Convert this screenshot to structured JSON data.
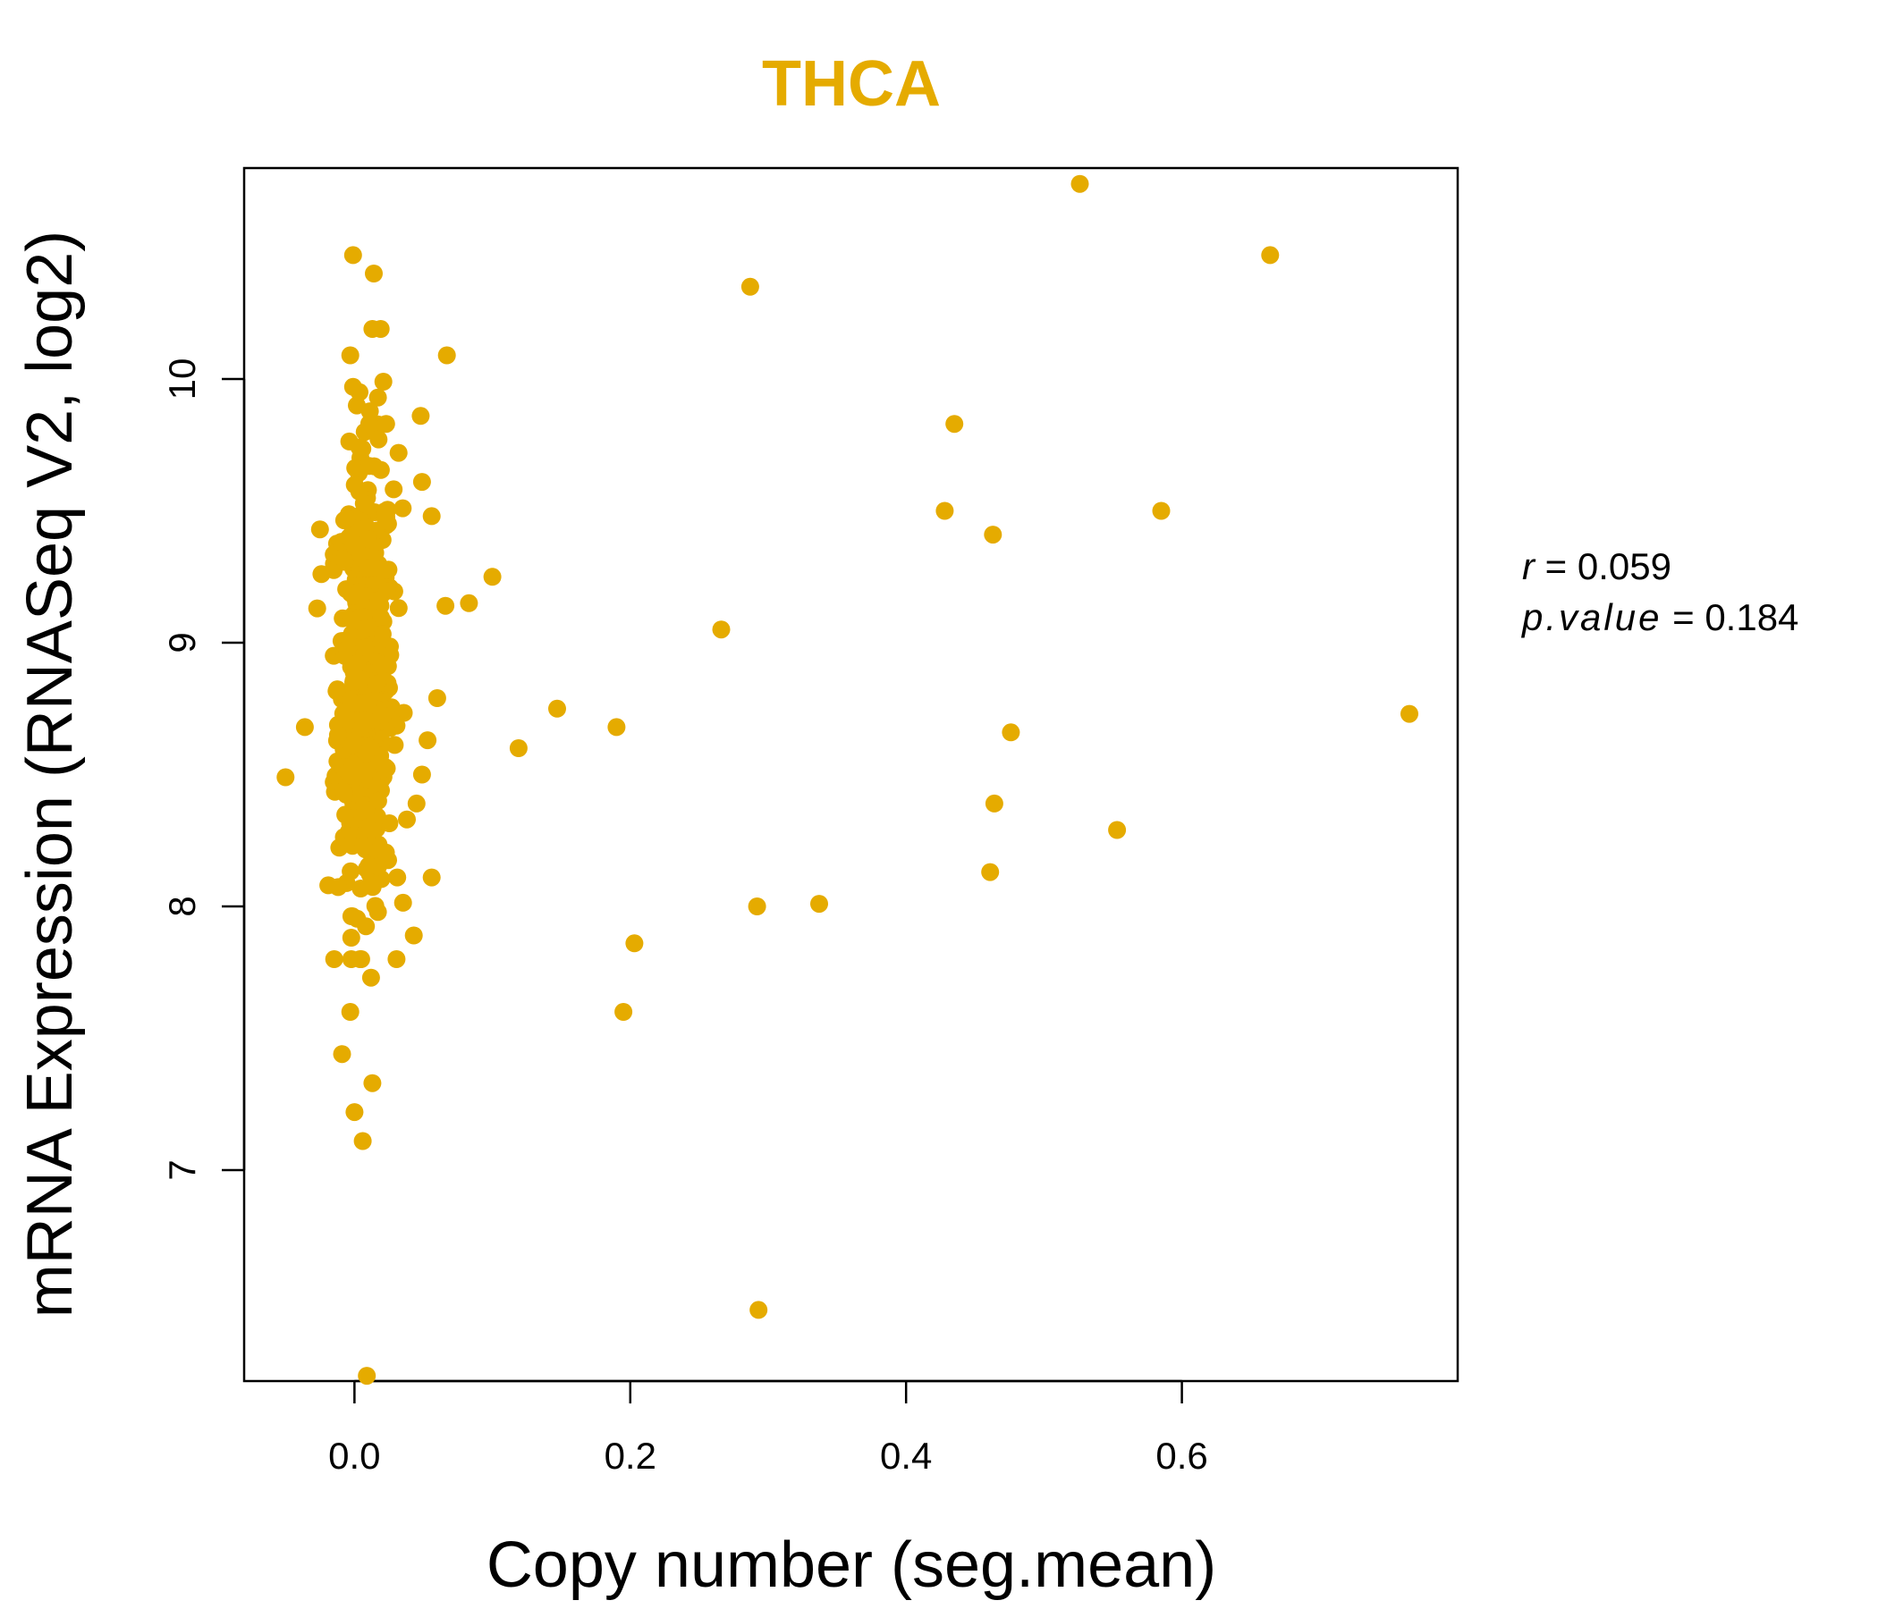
{
  "chart_data": {
    "type": "scatter",
    "title": "THCA",
    "xlabel": "Copy number (seg.mean)",
    "ylabel": "mRNA Expression (RNASeq V2, log2)",
    "xlim": [
      -0.08,
      0.8
    ],
    "ylim": [
      6.2,
      10.8
    ],
    "xticks": [
      {
        "value": 0.0,
        "label": "0.0"
      },
      {
        "value": 0.2,
        "label": "0.2"
      },
      {
        "value": 0.4,
        "label": "0.4"
      },
      {
        "value": 0.6,
        "label": "0.6"
      }
    ],
    "yticks": [
      {
        "value": 7,
        "label": "7"
      },
      {
        "value": 8,
        "label": "8"
      },
      {
        "value": 9,
        "label": "9"
      },
      {
        "value": 10,
        "label": "10"
      }
    ],
    "point_color": "#E5AB00",
    "stats": {
      "r_label": "r",
      "r_value": "0.059",
      "p_label": "p.value",
      "p_value": "0.184"
    },
    "outliers": [
      {
        "x": 0.526,
        "y": 10.74
      },
      {
        "x": 0.664,
        "y": 10.47
      },
      {
        "x": 0.287,
        "y": 10.35
      },
      {
        "x": 0.435,
        "y": 9.83
      },
      {
        "x": 0.428,
        "y": 9.5
      },
      {
        "x": 0.585,
        "y": 9.5
      },
      {
        "x": 0.463,
        "y": 9.41
      },
      {
        "x": 0.266,
        "y": 9.05
      },
      {
        "x": 0.765,
        "y": 8.73
      },
      {
        "x": 0.147,
        "y": 8.75
      },
      {
        "x": 0.19,
        "y": 8.68
      },
      {
        "x": 0.476,
        "y": 8.66
      },
      {
        "x": 0.119,
        "y": 8.6
      },
      {
        "x": 0.464,
        "y": 8.39
      },
      {
        "x": 0.553,
        "y": 8.29
      },
      {
        "x": 0.461,
        "y": 8.13
      },
      {
        "x": 0.292,
        "y": 8.0
      },
      {
        "x": 0.337,
        "y": 8.01
      },
      {
        "x": 0.203,
        "y": 7.86
      },
      {
        "x": 0.195,
        "y": 7.6
      },
      {
        "x": 0.293,
        "y": 6.47
      },
      {
        "x": 0.1,
        "y": 9.25
      },
      {
        "x": 0.083,
        "y": 9.15
      },
      {
        "x": 0.066,
        "y": 9.14
      },
      {
        "x": 0.06,
        "y": 8.79
      },
      {
        "x": 0.067,
        "y": 10.09
      },
      {
        "x": 0.048,
        "y": 9.86
      },
      {
        "x": 0.049,
        "y": 9.61
      },
      {
        "x": 0.056,
        "y": 9.48
      },
      {
        "x": 0.053,
        "y": 8.63
      },
      {
        "x": 0.049,
        "y": 8.5
      },
      {
        "x": 0.045,
        "y": 8.39
      },
      {
        "x": 0.038,
        "y": 8.33
      },
      {
        "x": 0.056,
        "y": 8.11
      },
      {
        "x": 0.043,
        "y": 7.89
      },
      {
        "x": -0.05,
        "y": 8.49
      },
      {
        "x": -0.036,
        "y": 8.68
      },
      {
        "x": -0.025,
        "y": 9.43
      },
      {
        "x": -0.024,
        "y": 9.26
      },
      {
        "x": -0.027,
        "y": 9.13
      },
      {
        "x": 0.009,
        "y": 6.22
      },
      {
        "x": 0.006,
        "y": 7.11
      },
      {
        "x": 0.0,
        "y": 7.22
      },
      {
        "x": 0.013,
        "y": 7.33
      },
      {
        "x": -0.009,
        "y": 7.44
      },
      {
        "x": -0.003,
        "y": 7.6
      },
      {
        "x": 0.012,
        "y": 7.73
      },
      {
        "x": -0.001,
        "y": 10.47
      },
      {
        "x": 0.014,
        "y": 10.4
      },
      {
        "x": 0.019,
        "y": 10.19
      },
      {
        "x": 0.013,
        "y": 10.19
      },
      {
        "x": -0.003,
        "y": 10.09
      },
      {
        "x": 0.021,
        "y": 9.99
      },
      {
        "x": -0.001,
        "y": 9.97
      },
      {
        "x": 0.017,
        "y": 9.93
      },
      {
        "x": 0.023,
        "y": 9.83
      },
      {
        "x": 0.032,
        "y": 9.72
      },
      {
        "x": 0.035,
        "y": 9.51
      },
      {
        "x": -0.019,
        "y": 8.08
      },
      {
        "x": -0.012,
        "y": 8.65
      },
      {
        "x": 0.031,
        "y": 8.11
      }
    ],
    "cluster": {
      "count": 480,
      "x_mean": 0.008,
      "x_sd": 0.01,
      "y_mean": 8.85,
      "y_sd": 0.42,
      "y_range": [
        7.8,
        9.95
      ]
    }
  }
}
